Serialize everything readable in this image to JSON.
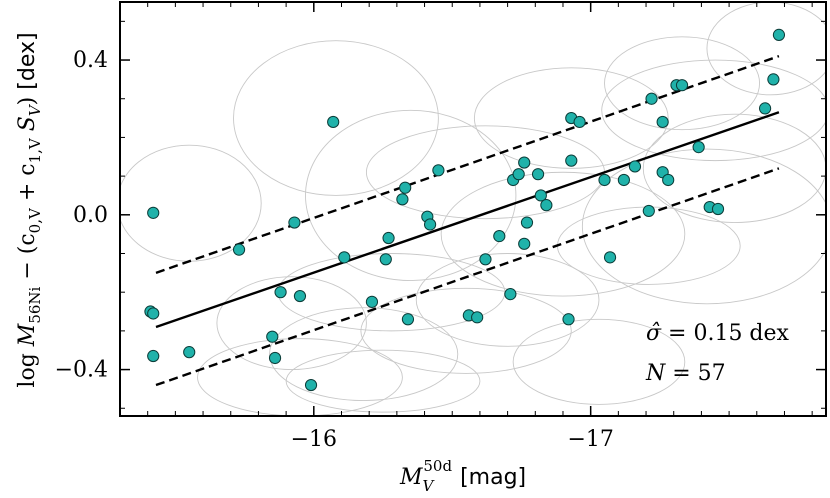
{
  "chart_data": {
    "type": "scatter",
    "xlabel": "M_V^50d [mag]",
    "xlabel_main": "M",
    "xlabel_sub": "V",
    "xlabel_sup": "50d",
    "xlabel_unit": "[mag]",
    "ylabel": "log M_56Ni − (c_0,V + c_1,V S_V) [dex]",
    "ylabel_parts": {
      "log": "log",
      "M": "M",
      "sub": "56Ni",
      "rest": "− (c",
      "c0sub": "0,V",
      "plus": "+ c",
      "c1sub": "1,V",
      "S": "S",
      "Ssub": "V",
      "close": ")",
      "unit": "[dex]"
    },
    "xlim": [
      -15.3,
      -17.85
    ],
    "ylim": [
      -0.52,
      0.55
    ],
    "xticks": [
      {
        "v": -16,
        "label": "−16"
      },
      {
        "v": -17,
        "label": "−17"
      }
    ],
    "yticks": [
      {
        "v": 0.4,
        "label": "0.4"
      },
      {
        "v": 0.0,
        "label": "0.0"
      },
      {
        "v": -0.4,
        "label": "−0.4"
      }
    ],
    "fit_line": {
      "x": [
        -15.43,
        -17.68
      ],
      "y": [
        -0.29,
        0.265
      ]
    },
    "upper_band": {
      "x": [
        -15.43,
        -17.68
      ],
      "y": [
        -0.15,
        0.41
      ]
    },
    "lower_band": {
      "x": [
        -15.43,
        -17.68
      ],
      "y": [
        -0.44,
        0.12
      ]
    },
    "annotations": {
      "sigma": "σ̂ = 0.15 dex",
      "sigma_sym": "σ̂",
      "sigma_rest": " = 0.15 dex",
      "n": "N = 57",
      "n_sym": "N",
      "n_rest": " = 57"
    },
    "points": [
      [
        -15.42,
        0.005
      ],
      [
        -15.41,
        -0.25
      ],
      [
        -15.42,
        -0.255
      ],
      [
        -15.42,
        -0.365
      ],
      [
        -15.55,
        -0.355
      ],
      [
        -15.73,
        -0.09
      ],
      [
        -15.85,
        -0.315
      ],
      [
        -15.86,
        -0.37
      ],
      [
        -15.88,
        -0.2
      ],
      [
        -15.93,
        -0.02
      ],
      [
        -15.95,
        -0.21
      ],
      [
        -15.99,
        -0.44
      ],
      [
        -16.07,
        0.24
      ],
      [
        -16.11,
        -0.11
      ],
      [
        -16.21,
        -0.225
      ],
      [
        -16.26,
        -0.115
      ],
      [
        -16.27,
        -0.06
      ],
      [
        -16.32,
        0.04
      ],
      [
        -16.33,
        0.07
      ],
      [
        -16.34,
        -0.27
      ],
      [
        -16.41,
        -0.005
      ],
      [
        -16.42,
        -0.025
      ],
      [
        -16.45,
        0.115
      ],
      [
        -16.56,
        -0.26
      ],
      [
        -16.59,
        -0.265
      ],
      [
        -16.62,
        -0.115
      ],
      [
        -16.67,
        -0.055
      ],
      [
        -16.71,
        -0.205
      ],
      [
        -16.72,
        0.09
      ],
      [
        -16.74,
        0.105
      ],
      [
        -16.76,
        0.135
      ],
      [
        -16.76,
        -0.075
      ],
      [
        -16.77,
        -0.02
      ],
      [
        -16.81,
        0.105
      ],
      [
        -16.82,
        0.05
      ],
      [
        -16.84,
        0.025
      ],
      [
        -16.92,
        -0.27
      ],
      [
        -16.93,
        0.25
      ],
      [
        -16.93,
        0.14
      ],
      [
        -16.96,
        0.24
      ],
      [
        -17.05,
        0.09
      ],
      [
        -17.07,
        -0.11
      ],
      [
        -17.12,
        0.09
      ],
      [
        -17.16,
        0.125
      ],
      [
        -17.21,
        0.01
      ],
      [
        -17.22,
        0.3
      ],
      [
        -17.26,
        0.11
      ],
      [
        -17.26,
        0.24
      ],
      [
        -17.28,
        0.09
      ],
      [
        -17.31,
        0.335
      ],
      [
        -17.33,
        0.335
      ],
      [
        -17.39,
        0.175
      ],
      [
        -17.43,
        0.02
      ],
      [
        -17.46,
        0.015
      ],
      [
        -17.63,
        0.275
      ],
      [
        -17.66,
        0.35
      ],
      [
        -17.68,
        0.465
      ]
    ],
    "ellipses": [
      [
        -15.55,
        0.03,
        0.26,
        0.15
      ],
      [
        -15.95,
        -0.42,
        0.37,
        0.1
      ],
      [
        -15.92,
        -0.28,
        0.27,
        0.12
      ],
      [
        -16.08,
        0.25,
        0.37,
        0.2
      ],
      [
        -16.18,
        -0.36,
        0.34,
        0.12
      ],
      [
        -16.28,
        -0.2,
        0.41,
        0.1
      ],
      [
        -16.35,
        0.05,
        0.38,
        0.22
      ],
      [
        -16.55,
        -0.3,
        0.38,
        0.11
      ],
      [
        -16.62,
        0.11,
        0.43,
        0.12
      ],
      [
        -16.7,
        -0.22,
        0.33,
        0.12
      ],
      [
        -16.9,
        -0.05,
        0.44,
        0.16
      ],
      [
        -16.93,
        0.25,
        0.35,
        0.13
      ],
      [
        -17.03,
        -0.38,
        0.31,
        0.11
      ],
      [
        -17.21,
        -0.08,
        0.33,
        0.1
      ],
      [
        -17.33,
        0.34,
        0.28,
        0.12
      ],
      [
        -17.45,
        0.27,
        0.41,
        0.13
      ],
      [
        -17.42,
        -0.03,
        0.45,
        0.2
      ],
      [
        -17.52,
        0.12,
        0.33,
        0.14
      ],
      [
        -16.25,
        -0.43,
        0.35,
        0.08
      ],
      [
        -17.65,
        0.43,
        0.23,
        0.12
      ]
    ],
    "colors": {
      "marker_fill": "#20b2aa",
      "marker_edge": "#0b3c38",
      "line": "#000000",
      "ellipse": "#c8c8c8"
    }
  }
}
